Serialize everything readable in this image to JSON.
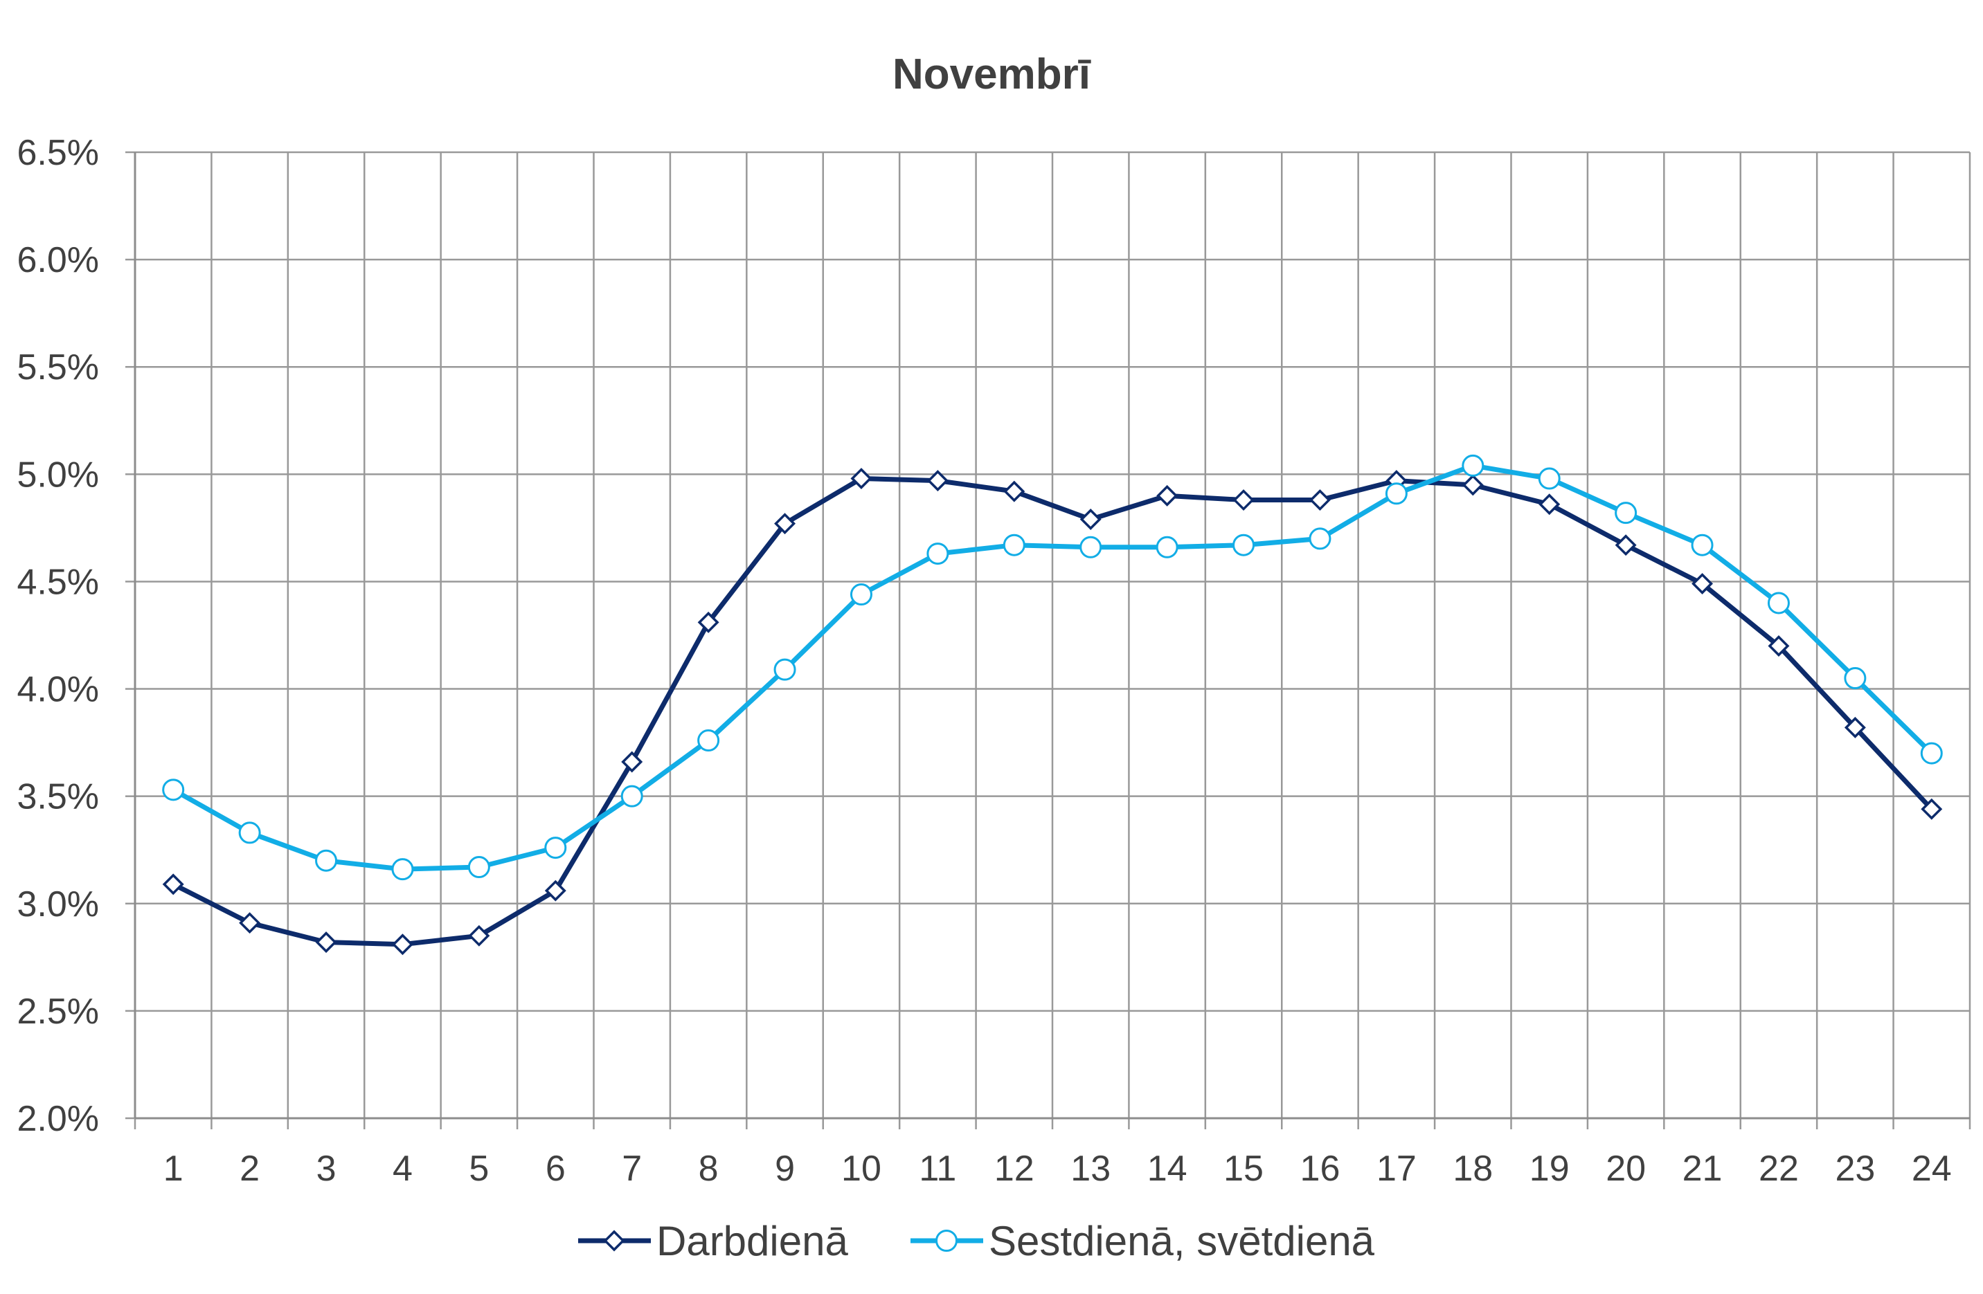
{
  "chart_data": {
    "type": "line",
    "title": "Novembrī",
    "xlabel": "",
    "ylabel": "",
    "categories": [
      "1",
      "2",
      "3",
      "4",
      "5",
      "6",
      "7",
      "8",
      "9",
      "10",
      "11",
      "12",
      "13",
      "14",
      "15",
      "16",
      "17",
      "18",
      "19",
      "20",
      "21",
      "22",
      "23",
      "24"
    ],
    "y_ticks": [
      "2.0%",
      "2.5%",
      "3.0%",
      "3.5%",
      "4.0%",
      "4.5%",
      "5.0%",
      "5.5%",
      "6.0%",
      "6.5%"
    ],
    "ylim": [
      0.02,
      0.065
    ],
    "grid": true,
    "legend_position": "bottom",
    "series": [
      {
        "name": "Darbdienā",
        "color": "#0d2b6b",
        "marker": "diamond",
        "values": [
          0.0309,
          0.0291,
          0.0282,
          0.0281,
          0.0285,
          0.0306,
          0.0366,
          0.0431,
          0.0477,
          0.0498,
          0.0497,
          0.0492,
          0.0479,
          0.049,
          0.0488,
          0.0488,
          0.0497,
          0.0495,
          0.0486,
          0.0467,
          0.0449,
          0.042,
          0.0382,
          0.0344
        ]
      },
      {
        "name": "Sestdienā, svētdienā",
        "color": "#12ade6",
        "marker": "circle",
        "values": [
          0.0353,
          0.0333,
          0.032,
          0.0316,
          0.0317,
          0.0326,
          0.035,
          0.0376,
          0.0409,
          0.0444,
          0.0463,
          0.0467,
          0.0466,
          0.0466,
          0.0467,
          0.047,
          0.0491,
          0.0504,
          0.0498,
          0.0482,
          0.0467,
          0.044,
          0.0405,
          0.037
        ]
      }
    ]
  }
}
